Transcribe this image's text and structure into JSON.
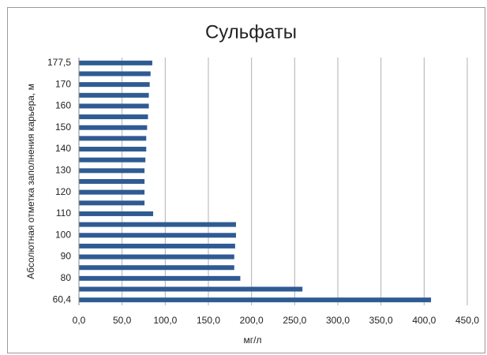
{
  "chart_data": {
    "type": "bar",
    "orientation": "horizontal",
    "title": "Сульфаты",
    "x_label": "мг/л",
    "y_label": "Абсолютная отметка заполнения карьера, м",
    "categories": [
      "60,4",
      null,
      "80",
      null,
      "90",
      null,
      "100",
      null,
      "110",
      null,
      "120",
      null,
      "130",
      null,
      "140",
      null,
      "150",
      null,
      "160",
      null,
      "170",
      null,
      "177,5"
    ],
    "values": [
      408,
      259,
      187,
      180,
      180,
      181,
      182,
      182,
      86,
      76,
      76,
      76,
      76,
      77,
      78,
      78,
      79,
      80,
      81,
      81,
      82,
      83,
      85
    ],
    "color": "#2f5b93",
    "xlim": [
      0,
      450
    ],
    "xticks": [
      {
        "value": 0,
        "label": "0,0"
      },
      {
        "value": 50,
        "label": "50,0"
      },
      {
        "value": 100,
        "label": "100,0"
      },
      {
        "value": 150,
        "label": "150,0"
      },
      {
        "value": 200,
        "label": "200,0"
      },
      {
        "value": 250,
        "label": "250,0"
      },
      {
        "value": 300,
        "label": "300,0"
      },
      {
        "value": 350,
        "label": "350,0"
      },
      {
        "value": 400,
        "label": "400,0"
      },
      {
        "value": 450,
        "label": "450,0"
      }
    ],
    "grid": true
  }
}
